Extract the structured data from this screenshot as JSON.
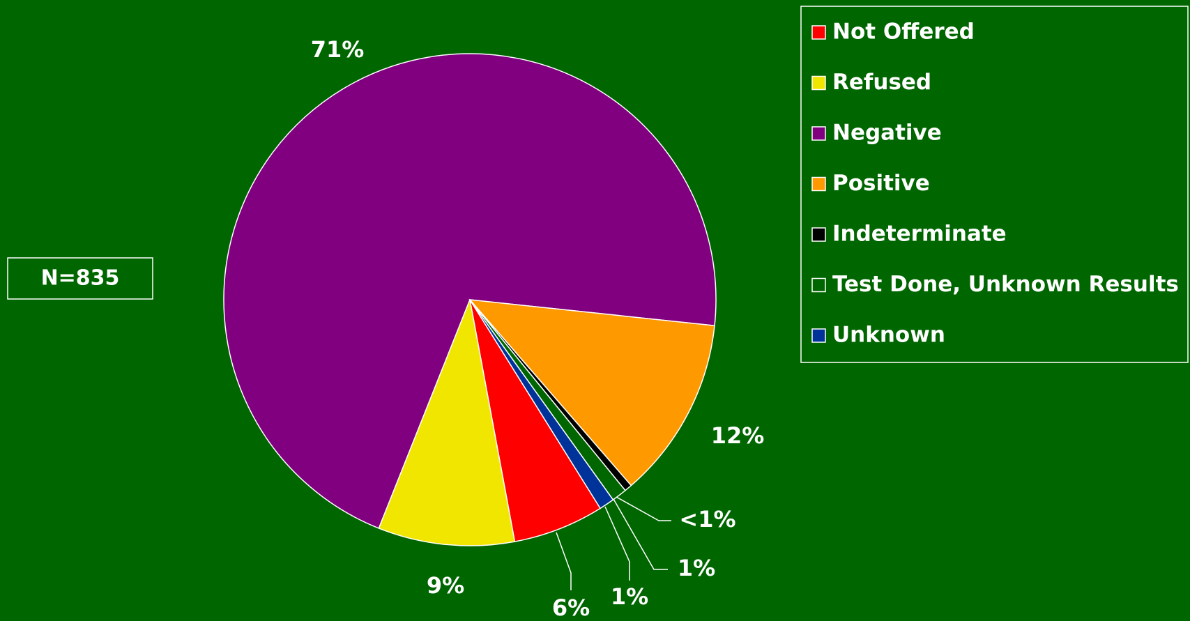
{
  "chart_data": {
    "type": "pie",
    "annotation": "N=835",
    "categories": [
      "Not Offered",
      "Refused",
      "Negative",
      "Positive",
      "Indeterminate",
      "Test Done, Unknown Results",
      "Unknown"
    ],
    "values": [
      6,
      9,
      71,
      12,
      0.5,
      1,
      1
    ],
    "value_labels": [
      "6%",
      "9%",
      "71%",
      "12%",
      "<1%",
      "1%",
      "1%"
    ],
    "colors": [
      "#ff0000",
      "#f0e600",
      "#800080",
      "#ff9900",
      "#000000",
      "#006600",
      "#003399"
    ],
    "legend": "right"
  }
}
